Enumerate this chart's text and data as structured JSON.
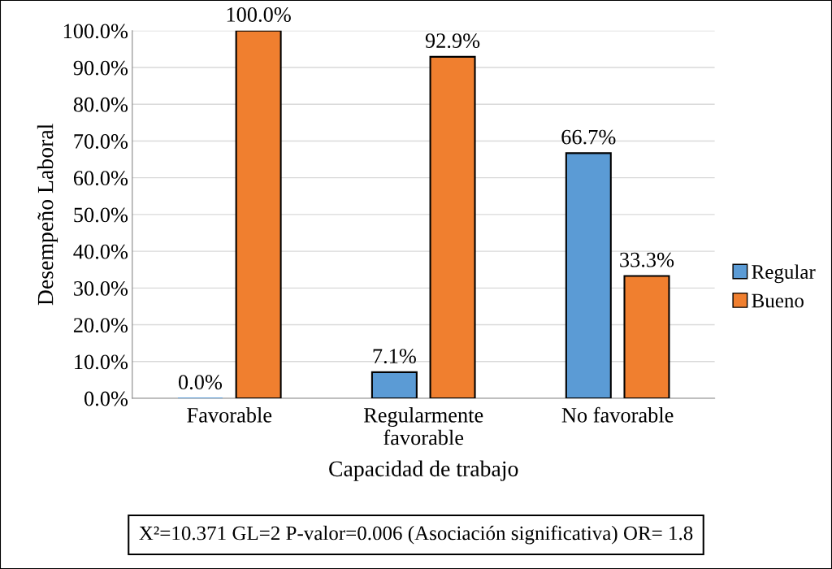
{
  "chart_data": {
    "type": "bar",
    "xlabel": "Capacidad de trabajo",
    "ylabel": "Desempeño Laboral",
    "categories": [
      "Favorable",
      "Regularmente\nfavorable",
      "No favorable"
    ],
    "series": [
      {
        "name": "Regular",
        "color": "#5b9bd5",
        "values": [
          0.0,
          7.1,
          66.7
        ],
        "value_labels": [
          "0.0%",
          "7.1%",
          "66.7%"
        ]
      },
      {
        "name": "Bueno",
        "color": "#f07f2f",
        "values": [
          100.0,
          92.9,
          33.3
        ],
        "value_labels": [
          "100.0%",
          "92.9%",
          "33.3%"
        ]
      }
    ],
    "ylim": [
      0,
      100
    ],
    "yticks": [
      {
        "value": 0,
        "label": "0.0%"
      },
      {
        "value": 10,
        "label": "10.0%"
      },
      {
        "value": 20,
        "label": "20.0%"
      },
      {
        "value": 30,
        "label": "30.0%"
      },
      {
        "value": 40,
        "label": "40.0%"
      },
      {
        "value": 50,
        "label": "50.0%"
      },
      {
        "value": 60,
        "label": "60.0%"
      },
      {
        "value": 70,
        "label": "70.0%"
      },
      {
        "value": 80,
        "label": "80.0%"
      },
      {
        "value": 90,
        "label": "90.0%"
      },
      {
        "value": 100,
        "label": "100.0%"
      }
    ],
    "grid": "y",
    "legend": "right",
    "annotations": [
      "X²=10.371 GL=2 P-valor=0.006 (Asociación significativa) OR= 1.8"
    ]
  }
}
